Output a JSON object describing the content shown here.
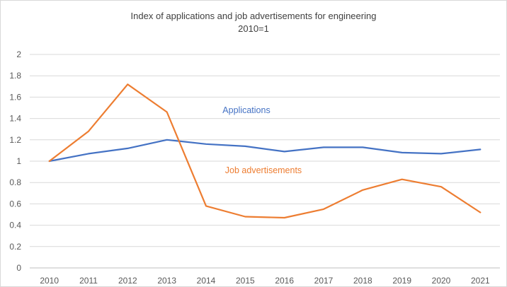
{
  "chart_data": {
    "type": "line",
    "title": "Index of applications and job advertisements for engineering",
    "subtitle": "2010=1",
    "xlabel": "",
    "ylabel": "",
    "categories": [
      "2010",
      "2011",
      "2012",
      "2013",
      "2014",
      "2015",
      "2016",
      "2017",
      "2018",
      "2019",
      "2020",
      "2021"
    ],
    "ylim": [
      0,
      2
    ],
    "yticks": [
      "0",
      "0.2",
      "0.4",
      "0.6",
      "0.8",
      "1",
      "1.2",
      "1.4",
      "1.6",
      "1.8",
      "2"
    ],
    "grid": true,
    "legend": "inline labels",
    "series": [
      {
        "name": "Applications",
        "color": "#4472c4",
        "values": [
          1.0,
          1.07,
          1.12,
          1.2,
          1.16,
          1.14,
          1.09,
          1.13,
          1.13,
          1.08,
          1.07,
          1.11
        ]
      },
      {
        "name": "Job advertisements",
        "color": "#ed7d31",
        "values": [
          1.0,
          1.28,
          1.72,
          1.46,
          0.58,
          0.48,
          0.47,
          0.55,
          0.73,
          0.83,
          0.76,
          0.52
        ]
      }
    ]
  }
}
